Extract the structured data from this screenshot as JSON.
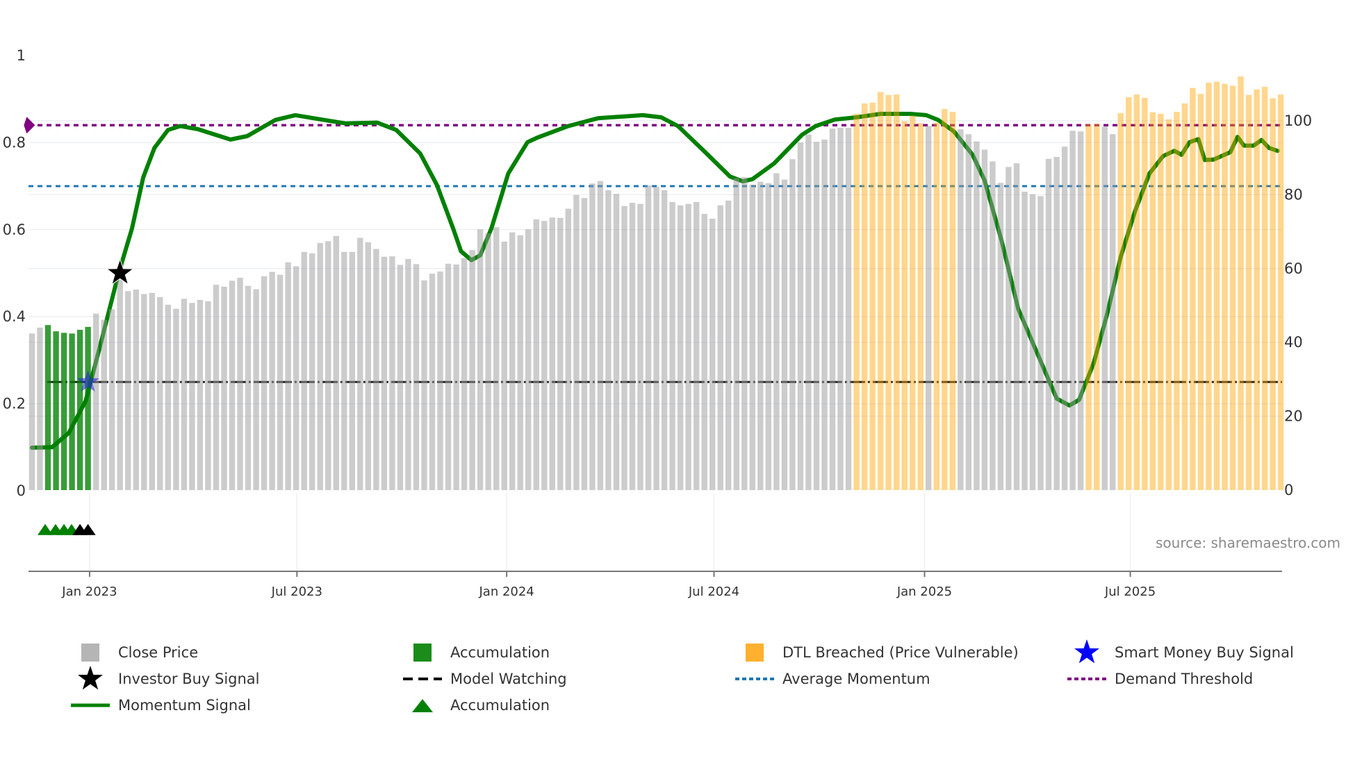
{
  "chart_data": {
    "type": "bar+line",
    "title": "",
    "source": "source: sharemaestro.com",
    "x_unit": "week index (weekly bars)",
    "x_range": [
      -0.4,
      156.6
    ],
    "x_ticks": [
      {
        "label": "Jan 2023",
        "week": 7.2
      },
      {
        "label": "Jul 2023",
        "week": 33.1
      },
      {
        "label": "Jan 2024",
        "week": 59.3
      },
      {
        "label": "Jul 2024",
        "week": 85.2
      },
      {
        "label": "Jan 2025",
        "week": 111.5
      },
      {
        "label": "Jul 2025",
        "week": 137.2
      }
    ],
    "left_axis": {
      "range": [
        -0.185,
        1.0
      ],
      "ticks": [
        {
          "label": "0",
          "value": 0
        },
        {
          "label": "0.2",
          "value": 0.2
        },
        {
          "label": "0.4",
          "value": 0.4
        },
        {
          "label": "0.6",
          "value": 0.6
        },
        {
          "label": "0.8",
          "value": 0.8
        },
        {
          "label": "1",
          "value": 1.0
        }
      ]
    },
    "right_axis": {
      "range": [
        0,
        117.7
      ],
      "ticks": [
        {
          "label": "0",
          "value": 0
        },
        {
          "label": "20",
          "value": 20
        },
        {
          "label": "40",
          "value": 40
        },
        {
          "label": "60",
          "value": 60
        },
        {
          "label": "80",
          "value": 80
        },
        {
          "label": "100",
          "value": 100
        }
      ]
    },
    "close_price": [
      42.4,
      44.0,
      44.7,
      43.0,
      42.6,
      42.4,
      43.4,
      44.2,
      47.8,
      46.1,
      49.0,
      57.6,
      53.9,
      54.3,
      53.1,
      53.4,
      52.3,
      50.2,
      49.1,
      51.8,
      50.7,
      51.5,
      51.1,
      55.6,
      55.1,
      56.7,
      57.5,
      55.3,
      54.4,
      57.9,
      59.1,
      58.3,
      61.7,
      60.6,
      64.5,
      64.1,
      66.9,
      67.4,
      68.8,
      64.5,
      64.5,
      68.3,
      67.1,
      65.3,
      63.2,
      63.3,
      61.0,
      62.6,
      61.2,
      56.8,
      58.6,
      59.2,
      61.3,
      61.1,
      62.8,
      65.0,
      70.6,
      69.5,
      71.2,
      67.3,
      69.8,
      69.0,
      70.6,
      73.3,
      72.9,
      73.8,
      73.7,
      76.2,
      79.9,
      79.1,
      83.0,
      83.7,
      81.2,
      80.2,
      76.9,
      77.8,
      77.5,
      82.5,
      82.1,
      81.2,
      78.0,
      77.1,
      77.5,
      78.0,
      74.8,
      73.5,
      77.1,
      78.4,
      84.5,
      84.7,
      82.7,
      83.5,
      83.1,
      85.8,
      84.1,
      89.6,
      94.1,
      96.3,
      94.3,
      94.9,
      97.9,
      98.1,
      98.1,
      101.9,
      104.7,
      104.9,
      107.8,
      107.0,
      107.1,
      99.9,
      101.4,
      99.4,
      98.6,
      99.5,
      103.2,
      102.4,
      97.7,
      96.4,
      94.4,
      92.2,
      89.0,
      83.2,
      87.5,
      88.5,
      80.8,
      80.1,
      79.6,
      89.7,
      90.2,
      93.0,
      97.3,
      97.1,
      99.1,
      99.2,
      98.4,
      96.4,
      102.1,
      106.4,
      107.1,
      106.2,
      102.3,
      101.9,
      100.4,
      102.4,
      104.7,
      108.9,
      107.3,
      110.3,
      110.6,
      110.0,
      109.5,
      112.0,
      107.0,
      108.5,
      109.2,
      106.1,
      107.1
    ],
    "accumulation_bar_ranges": [
      [
        2,
        7
      ]
    ],
    "dtl_breached_bar_ranges": [
      [
        103,
        111
      ],
      [
        113,
        115
      ],
      [
        132,
        133
      ],
      [
        136,
        156
      ]
    ],
    "momentum_signal": [
      [
        0,
        0.099
      ],
      [
        2.5,
        0.1
      ],
      [
        4.6,
        0.133
      ],
      [
        6.7,
        0.206
      ],
      [
        8.4,
        0.325
      ],
      [
        10.8,
        0.498
      ],
      [
        12.5,
        0.603
      ],
      [
        13.9,
        0.72
      ],
      [
        15.3,
        0.788
      ],
      [
        17.0,
        0.829
      ],
      [
        18.5,
        0.838
      ],
      [
        20.7,
        0.831
      ],
      [
        24.8,
        0.807
      ],
      [
        26.9,
        0.815
      ],
      [
        30.4,
        0.852
      ],
      [
        32.9,
        0.863
      ],
      [
        36.5,
        0.852
      ],
      [
        39.2,
        0.844
      ],
      [
        43.1,
        0.846
      ],
      [
        45.5,
        0.829
      ],
      [
        48.5,
        0.775
      ],
      [
        50.6,
        0.702
      ],
      [
        52.6,
        0.603
      ],
      [
        53.6,
        0.55
      ],
      [
        54.9,
        0.53
      ],
      [
        56.0,
        0.541
      ],
      [
        57.4,
        0.603
      ],
      [
        59.5,
        0.729
      ],
      [
        61.9,
        0.801
      ],
      [
        63.2,
        0.812
      ],
      [
        67.0,
        0.838
      ],
      [
        70.7,
        0.856
      ],
      [
        76.3,
        0.863
      ],
      [
        78.6,
        0.858
      ],
      [
        80.7,
        0.838
      ],
      [
        84.1,
        0.778
      ],
      [
        87.2,
        0.722
      ],
      [
        88.8,
        0.711
      ],
      [
        90.0,
        0.716
      ],
      [
        92.7,
        0.752
      ],
      [
        96.2,
        0.818
      ],
      [
        97.9,
        0.838
      ],
      [
        100.3,
        0.853
      ],
      [
        103.0,
        0.858
      ],
      [
        106.0,
        0.866
      ],
      [
        109.7,
        0.866
      ],
      [
        111.7,
        0.863
      ],
      [
        113.2,
        0.852
      ],
      [
        115.2,
        0.825
      ],
      [
        117.5,
        0.772
      ],
      [
        119.0,
        0.713
      ],
      [
        121.1,
        0.576
      ],
      [
        123.2,
        0.418
      ],
      [
        126.0,
        0.298
      ],
      [
        128.0,
        0.212
      ],
      [
        129.6,
        0.196
      ],
      [
        130.8,
        0.209
      ],
      [
        132.6,
        0.292
      ],
      [
        134.3,
        0.405
      ],
      [
        136.0,
        0.537
      ],
      [
        137.8,
        0.643
      ],
      [
        139.6,
        0.729
      ],
      [
        141.3,
        0.769
      ],
      [
        142.7,
        0.781
      ],
      [
        143.6,
        0.772
      ],
      [
        144.6,
        0.801
      ],
      [
        145.7,
        0.808
      ],
      [
        146.5,
        0.76
      ],
      [
        147.6,
        0.761
      ],
      [
        149.7,
        0.778
      ],
      [
        150.6,
        0.813
      ],
      [
        151.4,
        0.793
      ],
      [
        152.6,
        0.793
      ],
      [
        153.6,
        0.806
      ],
      [
        154.5,
        0.788
      ],
      [
        155.6,
        0.781
      ]
    ],
    "demand_threshold": 0.84,
    "average_momentum": 0.7,
    "model_watching": {
      "value": 0.25,
      "from_week": 1.9
    },
    "investor_buy_signal": [
      {
        "week": 11,
        "value": 0.5
      }
    ],
    "smart_money_buy_signal": [
      {
        "week": 7,
        "value": 0.25
      }
    ],
    "accumulation_markers": [
      {
        "week": 1.65,
        "value": -0.089
      },
      {
        "week": 2.95,
        "value": -0.089
      },
      {
        "week": 4.0,
        "value": -0.089
      },
      {
        "week": 4.95,
        "value": -0.089
      }
    ],
    "black_triangle_markers": [
      {
        "week": 6.0,
        "value": -0.089
      },
      {
        "week": 7.0,
        "value": -0.089
      }
    ],
    "threshold_marker": {
      "week": -0.4,
      "value": 0.84
    },
    "legend_position": "bottom",
    "legend": [
      {
        "label": "Close Price",
        "icon": "gray-square",
        "color": "#b5b5b5"
      },
      {
        "label": "Accumulation",
        "icon": "green-square",
        "color": "#1a8c1a"
      },
      {
        "label": "DTL Breached (Price Vulnerable)",
        "icon": "orange-square",
        "color": "#ffb02e"
      },
      {
        "label": "Smart Money Buy Signal",
        "icon": "blue-star",
        "color": "#0000ff"
      },
      {
        "label": "Investor Buy Signal",
        "icon": "black-star",
        "color": "#000000"
      },
      {
        "label": "Model Watching",
        "icon": "dashed-line",
        "color": "#000000"
      },
      {
        "label": "Average Momentum",
        "icon": "dotted-line",
        "color": "#1f77b4"
      },
      {
        "label": "Demand Threshold",
        "icon": "dotted-line",
        "color": "#800080"
      },
      {
        "label": "Momentum Signal",
        "icon": "solid-line",
        "color": "#008000"
      },
      {
        "label": "Accumulation",
        "icon": "green-triangle",
        "color": "#008000"
      }
    ],
    "colors": {
      "close": "#999999",
      "accumulation": "#008000",
      "dtl": "#ffa500",
      "momentum": "#008000",
      "demand": "#800080",
      "average": "#1f77b4",
      "watching": "#000000",
      "grid": "#eceff4",
      "axis": "#777777"
    }
  }
}
